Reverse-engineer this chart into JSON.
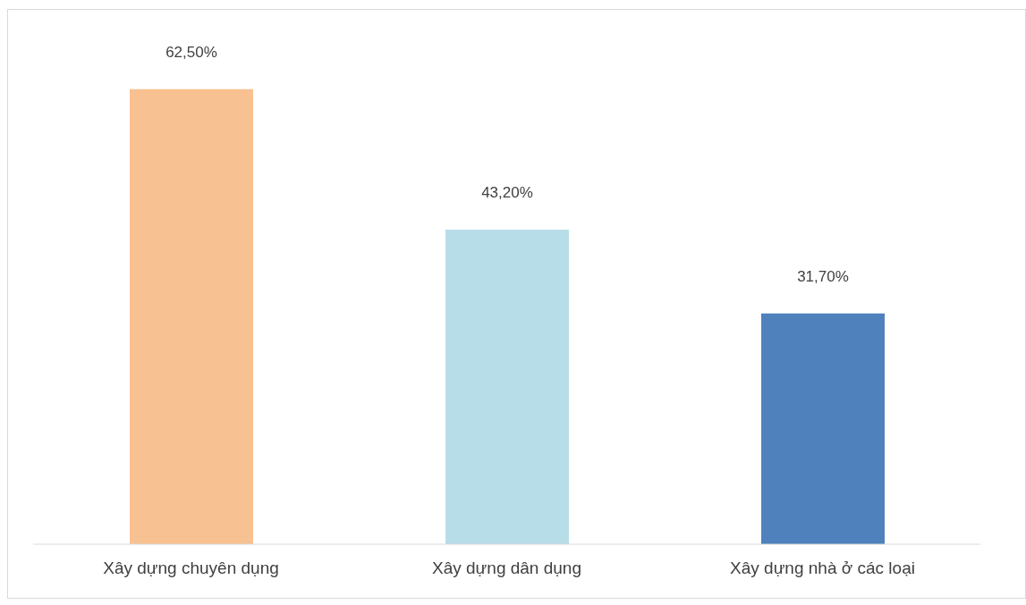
{
  "chart_data": {
    "type": "bar",
    "categories": [
      "Xây dựng chuyên dụng",
      "Xây dựng dân dụng",
      "Xây dựng nhà ở các loại"
    ],
    "values": [
      62.5,
      43.2,
      31.7
    ],
    "colors": [
      "#f8c191",
      "#b7dde8",
      "#4f81bd"
    ],
    "value_labels": [
      "62,50%",
      "43,20%",
      "31,70%"
    ]
  }
}
